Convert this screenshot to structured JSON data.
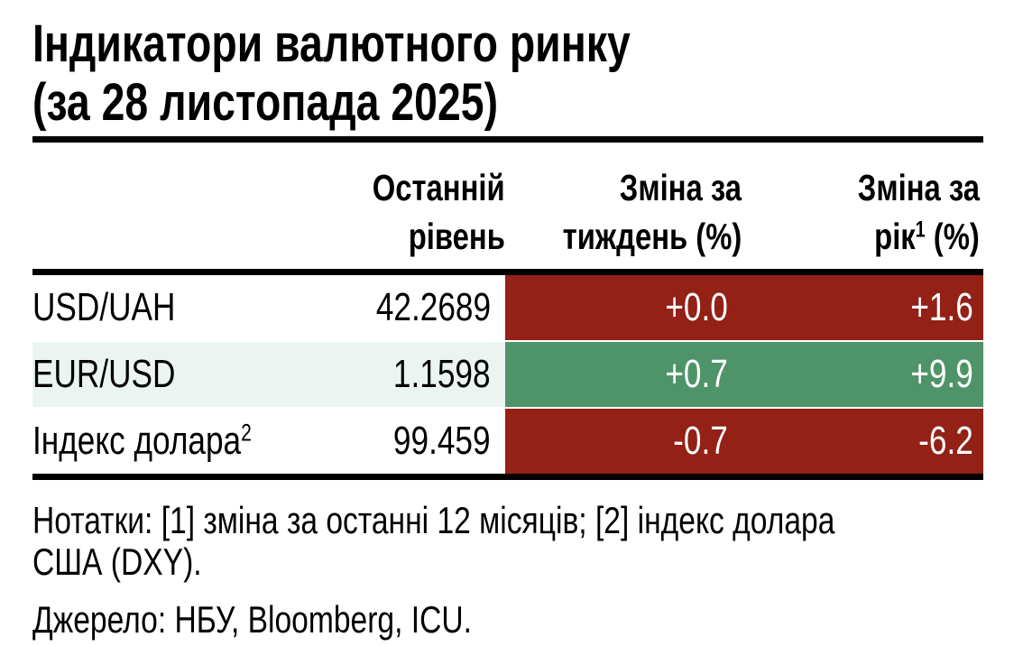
{
  "title": {
    "line1": "Індикатори валютного ринку",
    "line2": "(за 28 листопада 2025)"
  },
  "table": {
    "header": {
      "level": {
        "line1": "Останній",
        "line2": "рівень"
      },
      "week": {
        "line1": "Зміна за",
        "line2": "тиждень (%)"
      },
      "year": {
        "line1": "Зміна за",
        "line2_base": "рік",
        "line2_sup": "1",
        "line2_rest": " (%)"
      }
    },
    "rows": [
      {
        "label": "USD/UAH",
        "label_sup": "",
        "level": "42.2689",
        "week": "+0.0",
        "year": "+1.6",
        "row_bg": "#ffffff",
        "cell_bg": "#932116",
        "cell_fg": "#ffffff"
      },
      {
        "label": "EUR/USD",
        "label_sup": "",
        "level": "1.1598",
        "week": "+0.7",
        "year": "+9.9",
        "row_bg": "#ECF4F1",
        "cell_bg": "#4F9468",
        "cell_fg": "#ffffff"
      },
      {
        "label": "Індекс долара",
        "label_sup": "2",
        "level": "99.459",
        "week": "-0.7",
        "year": "-6.2",
        "row_bg": "#ffffff",
        "cell_bg": "#932116",
        "cell_fg": "#ffffff"
      }
    ]
  },
  "notes": {
    "line1": "Нотатки: [1] зміна за останні 12 місяців; [2] індекс долара",
    "line2": "США (DXY)."
  },
  "source": "Джерело: НБУ, Bloomberg, ICU.",
  "palette": {
    "negative_red": "#932116",
    "positive_green": "#4F9468",
    "row_highlight_mint": "#ECF4F1",
    "rule_black": "#000000",
    "text_on_color": "#ffffff"
  },
  "chart_data": {
    "type": "table",
    "title": "Індикатори валютного ринку (за 28 листопада 2025)",
    "columns": [
      "",
      "Останній рівень",
      "Зміна за тиждень (%)",
      "Зміна за рік1 (%)"
    ],
    "rows": [
      [
        "USD/UAH",
        42.2689,
        0.0,
        1.6
      ],
      [
        "EUR/USD",
        1.1598,
        0.7,
        9.9
      ],
      [
        "Індекс долара2",
        99.459,
        -0.7,
        -6.2
      ]
    ],
    "cell_colors_week_year": [
      "#932116",
      "#4F9468",
      "#932116"
    ],
    "notes": "Нотатки: [1] зміна за останні 12 місяців; [2] індекс долара США (DXY).",
    "source": "Джерело: НБУ, Bloomberg, ICU."
  }
}
